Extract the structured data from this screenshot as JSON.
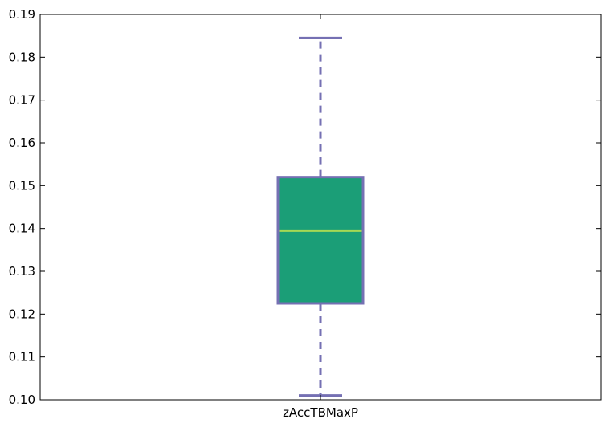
{
  "chart_data": {
    "type": "box",
    "categories": [
      "zAccTBMaxP"
    ],
    "series": [
      {
        "whisker_low": 0.101,
        "q1": 0.1225,
        "median": 0.1395,
        "q3": 0.152,
        "whisker_high": 0.1845
      }
    ],
    "ylim": [
      0.1,
      0.19
    ],
    "yticks": [
      {
        "value": 0.1,
        "label": "0.10"
      },
      {
        "value": 0.11,
        "label": "0.11"
      },
      {
        "value": 0.12,
        "label": "0.12"
      },
      {
        "value": 0.13,
        "label": "0.13"
      },
      {
        "value": 0.14,
        "label": "0.14"
      },
      {
        "value": 0.15,
        "label": "0.15"
      },
      {
        "value": 0.16,
        "label": "0.16"
      },
      {
        "value": 0.17,
        "label": "0.17"
      },
      {
        "value": 0.18,
        "label": "0.18"
      },
      {
        "value": 0.19,
        "label": "0.19"
      }
    ],
    "grid": false,
    "colors": {
      "box_fill": "#1b9e77",
      "box_edge": "#7570b3",
      "median": "#a6d854",
      "whisker": "#7570b3"
    }
  }
}
